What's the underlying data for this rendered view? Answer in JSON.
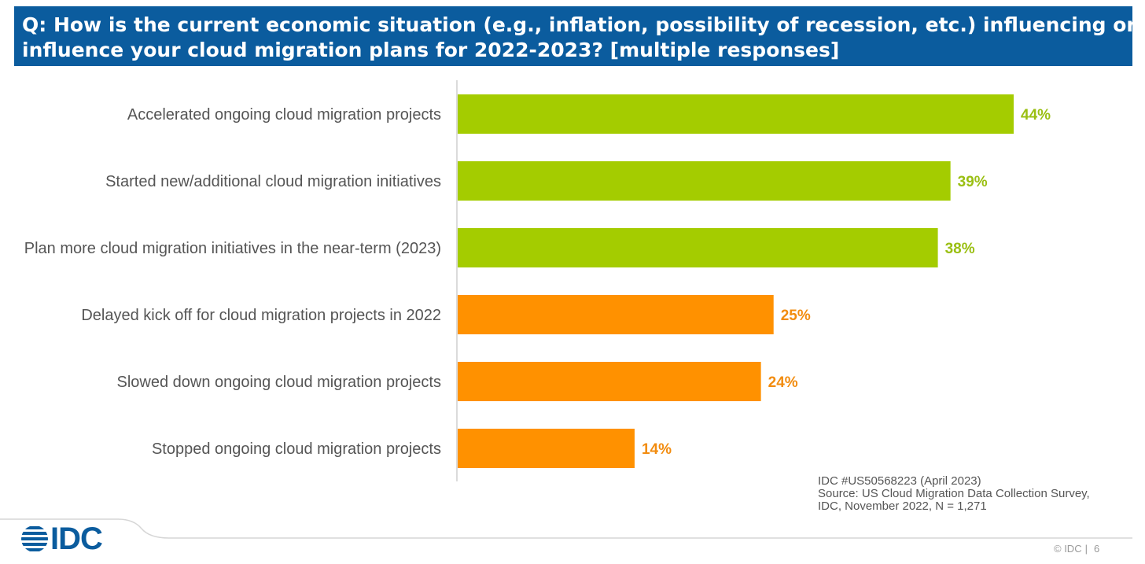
{
  "question": {
    "line1": "Q: How is the current economic situation (e.g., inflation, possibility of recession, etc.) influencing or will",
    "line2": "influence your cloud migration plans for 2022-2023? [multiple responses]"
  },
  "chart_data": {
    "type": "bar",
    "orientation": "horizontal",
    "title": "Q: How is the current economic situation (e.g., inflation, possibility of recession, etc.) influencing or will influence your cloud migration plans for 2022-2023? [multiple responses]",
    "categories": [
      "Accelerated ongoing cloud migration projects",
      "Started new/additional cloud migration initiatives",
      "Plan more cloud migration initiatives in the near-term (2023)",
      "Delayed kick off for cloud migration projects in 2022",
      "Slowed down ongoing cloud migration projects",
      "Stopped ongoing cloud migration projects"
    ],
    "values": [
      44,
      39,
      38,
      25,
      24,
      14
    ],
    "value_labels": [
      "44%",
      "39%",
      "38%",
      "25%",
      "24%",
      "14%"
    ],
    "bar_colors": [
      "#a4cc00",
      "#a4cc00",
      "#a4cc00",
      "#ff9100",
      "#ff9100",
      "#ff9100"
    ],
    "label_colors": [
      "#9abf12",
      "#9abf12",
      "#9abf12",
      "#f28c0f",
      "#f28c0f",
      "#f28c0f"
    ],
    "xlim": [
      0,
      44
    ],
    "grid": false,
    "legend": "none"
  },
  "source": {
    "line1": "IDC #US50568223 (April 2023)",
    "line2": "Source: US Cloud Migration Data Collection Survey,",
    "line3": "IDC, November 2022, N = 1,271"
  },
  "logo": {
    "text": "IDC",
    "icon": "globe-stripes-icon",
    "color": "#0b5c9e"
  },
  "footer": {
    "copyright": "© IDC",
    "separator": "|",
    "page": "6"
  },
  "colors": {
    "banner": "#0b5c9e",
    "positive": "#a4cc00",
    "negative": "#ff9100",
    "axis": "#cfcfcf",
    "label": "#555555"
  }
}
